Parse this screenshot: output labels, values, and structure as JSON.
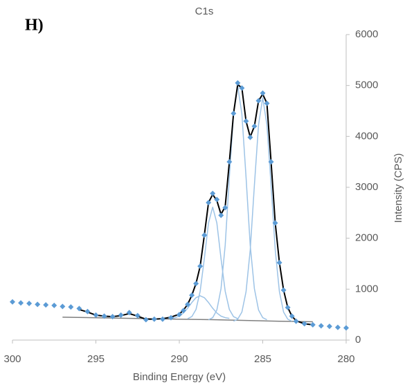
{
  "chart_data": {
    "type": "line",
    "title": "C1s",
    "panel_label": "H)",
    "x_label": "Binding Energy (eV)",
    "y_label": "Intensity (CPS)",
    "xlim": [
      300,
      280
    ],
    "xticks": [
      300,
      295,
      290,
      285,
      280
    ],
    "ylim": [
      0,
      6000
    ],
    "yticks": [
      0,
      1000,
      2000,
      3000,
      4000,
      5000,
      6000
    ],
    "y_axis_side": "right",
    "series": [
      {
        "color": "#7f7f7f",
        "marker": "none",
        "x": [
          297,
          292,
          288,
          284,
          282
        ],
        "values": [
          450,
          420,
          400,
          370,
          360
        ]
      },
      {
        "color": "#9dc3e6",
        "marker": "none",
        "x": [
          290.5,
          290.25,
          290,
          289.75,
          289.5,
          289.25,
          289,
          288.75,
          288.5,
          288.25,
          288,
          287.75,
          287.5,
          287.25,
          287
        ],
        "values": [
          426,
          440,
          470,
          532,
          626,
          738,
          833,
          870,
          833,
          738,
          626,
          532,
          470,
          440,
          426
        ]
      },
      {
        "color": "#9dc3e6",
        "marker": "none",
        "x": [
          289.5,
          289.25,
          289,
          288.75,
          288.5,
          288.25,
          288,
          287.75,
          287.5,
          287.25,
          287,
          286.75,
          286.5
        ],
        "values": [
          420,
          460,
          600,
          960,
          1600,
          2300,
          2610,
          2300,
          1600,
          960,
          600,
          460,
          420
        ]
      },
      {
        "color": "#9dc3e6",
        "marker": "none",
        "x": [
          288.25,
          288,
          287.75,
          287.5,
          287.25,
          287,
          286.75,
          286.5,
          286.25,
          286,
          285.75,
          285.5,
          285.25,
          285,
          284.75
        ],
        "values": [
          400,
          440,
          590,
          1010,
          1860,
          3200,
          4440,
          4990,
          4440,
          3200,
          1860,
          1010,
          590,
          440,
          400
        ]
      },
      {
        "color": "#9dc3e6",
        "marker": "none",
        "x": [
          286.75,
          286.5,
          286.25,
          286,
          285.75,
          285.5,
          285.25,
          285,
          284.75,
          284.5,
          284.25,
          284,
          283.75,
          283.5,
          283.25
        ],
        "values": [
          370,
          410,
          550,
          950,
          1770,
          3040,
          4230,
          4760,
          4230,
          3040,
          1770,
          950,
          550,
          410,
          370
        ]
      },
      {
        "color": "#000000",
        "marker": "none",
        "x": [
          296,
          295.5,
          295,
          294.5,
          294,
          293.5,
          293,
          292.5,
          292,
          291.5,
          291,
          290.5,
          290,
          289.75,
          289.5,
          289.25,
          289,
          288.75,
          288.5,
          288.25,
          288,
          287.75,
          287.5,
          287.25,
          287,
          286.75,
          286.5,
          286.25,
          286,
          285.75,
          285.5,
          285.25,
          285,
          284.75,
          284.5,
          284.25,
          284,
          283.75,
          283.5,
          283.25,
          283,
          282.5,
          282
        ],
        "values": [
          600,
          550,
          490,
          470,
          460,
          480,
          520,
          470,
          410,
          410,
          420,
          450,
          510,
          590,
          700,
          880,
          1110,
          1450,
          2060,
          2700,
          2860,
          2740,
          2470,
          2620,
          3500,
          4450,
          5020,
          4950,
          4300,
          3990,
          4200,
          4700,
          4830,
          4650,
          3500,
          2300,
          1520,
          980,
          640,
          470,
          380,
          320,
          300
        ]
      },
      {
        "color": "#5b9bd5",
        "marker": "diamond",
        "x": [
          300,
          299.5,
          299,
          298.5,
          298,
          297.5,
          297,
          296.5,
          296,
          295.5,
          295,
          294.5,
          294,
          293.5,
          293,
          292.5,
          292,
          291.5,
          291,
          290.5,
          290,
          289.75,
          289.5,
          289.25,
          289,
          288.75,
          288.5,
          288.25,
          288,
          287.75,
          287.5,
          287.25,
          287,
          286.75,
          286.5,
          286.25,
          286,
          285.75,
          285.5,
          285.25,
          285,
          284.75,
          284.5,
          284.25,
          284,
          283.75,
          283.5,
          283.25,
          283,
          282.5,
          282,
          281.5,
          281,
          280.5,
          280
        ],
        "values": [
          750,
          730,
          720,
          700,
          690,
          680,
          660,
          650,
          620,
          560,
          490,
          470,
          460,
          490,
          540,
          480,
          400,
          410,
          410,
          440,
          500,
          580,
          700,
          880,
          1110,
          1450,
          2060,
          2700,
          2880,
          2760,
          2450,
          2600,
          3500,
          4450,
          5050,
          4950,
          4300,
          3980,
          4200,
          4700,
          4850,
          4650,
          3500,
          2300,
          1520,
          980,
          640,
          470,
          370,
          320,
          300,
          280,
          270,
          250,
          240
        ]
      }
    ]
  }
}
